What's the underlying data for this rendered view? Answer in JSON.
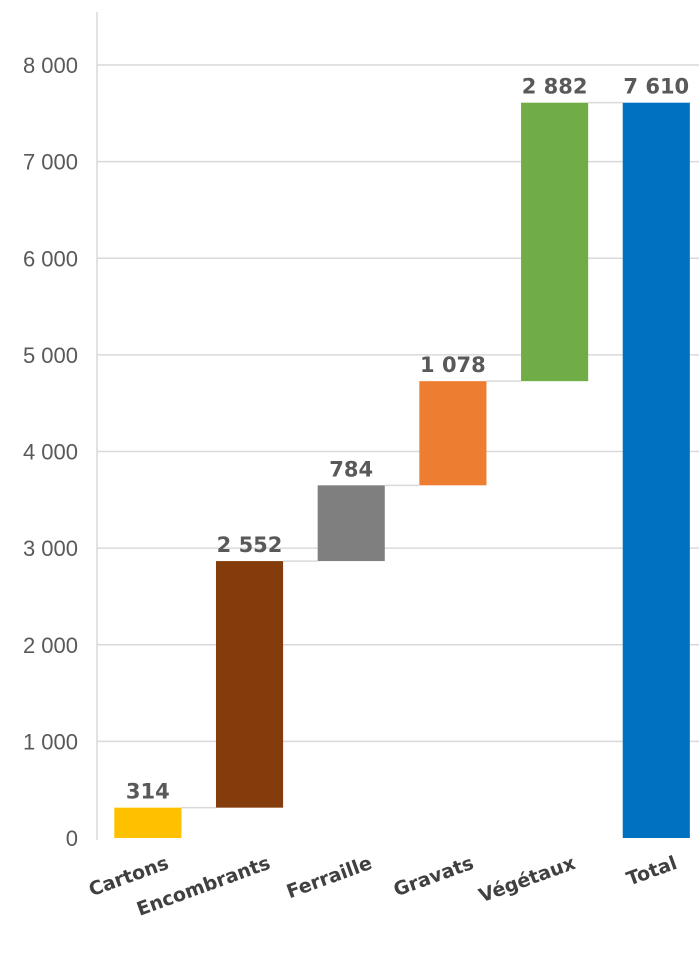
{
  "chart_data": {
    "type": "bar",
    "subtype": "waterfall",
    "title": "",
    "xlabel": "",
    "ylabel": "",
    "ylim": [
      0,
      8000
    ],
    "y_ticks": [
      0,
      1000,
      2000,
      3000,
      4000,
      5000,
      6000,
      7000,
      8000
    ],
    "y_tick_labels": [
      "0",
      "1 000",
      "2 000",
      "3 000",
      "4 000",
      "5 000",
      "6 000",
      "7 000",
      "8 000"
    ],
    "grid": true,
    "legend": "none",
    "categories": [
      "Cartons",
      "Encombrants",
      "Ferraille",
      "Gravats",
      "Végétaux",
      "Total"
    ],
    "values": [
      314,
      2552,
      784,
      1078,
      2882,
      7610
    ],
    "value_labels": [
      "314",
      "2 552",
      "784",
      "1 078",
      "2 882",
      "7 610"
    ],
    "is_total": [
      false,
      false,
      false,
      false,
      false,
      true
    ],
    "colors": [
      "#FFC000",
      "#843C0C",
      "#7F7F7F",
      "#ED7D31",
      "#70AD47",
      "#0070C0"
    ]
  }
}
